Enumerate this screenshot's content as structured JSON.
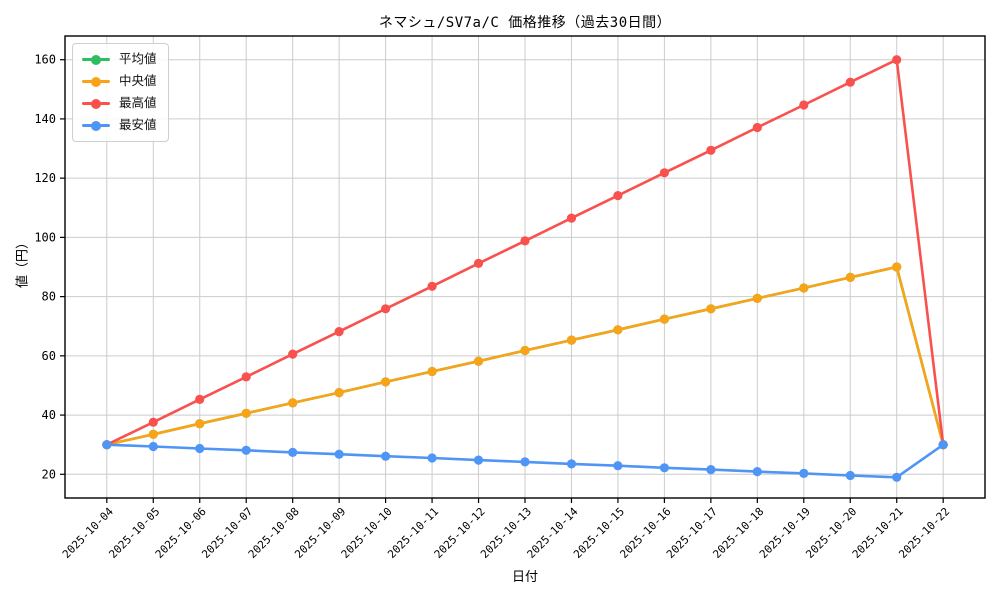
{
  "chart_data": {
    "type": "line",
    "title": "ネマシュ/SV7a/C 価格推移（過去30日間）",
    "xlabel": "日付",
    "ylabel": "値（円）",
    "x": [
      "2025-10-04",
      "2025-10-05",
      "2025-10-06",
      "2025-10-07",
      "2025-10-08",
      "2025-10-09",
      "2025-10-10",
      "2025-10-11",
      "2025-10-12",
      "2025-10-13",
      "2025-10-14",
      "2025-10-15",
      "2025-10-16",
      "2025-10-17",
      "2025-10-18",
      "2025-10-19",
      "2025-10-20",
      "2025-10-21",
      "2025-10-22"
    ],
    "yticks": [
      20,
      40,
      60,
      80,
      100,
      120,
      140,
      160
    ],
    "ylim": [
      12,
      168
    ],
    "x_pad": 0.9,
    "grid": true,
    "grid_color": "#cccccc",
    "spine_color": "#000000",
    "legend_position": "upper-left",
    "series": [
      {
        "key": "mean",
        "name": "平均値",
        "color": "#2dbe60",
        "visually_hidden_behind_median": true,
        "values": [
          30.0,
          33.5,
          37.1,
          40.6,
          44.1,
          47.6,
          51.2,
          54.7,
          58.2,
          61.8,
          65.3,
          68.8,
          72.4,
          75.9,
          79.4,
          82.9,
          86.5,
          90.0,
          30.0
        ]
      },
      {
        "key": "median",
        "name": "中央値",
        "color": "#f9a318",
        "values": [
          30.0,
          33.5,
          37.1,
          40.6,
          44.1,
          47.6,
          51.2,
          54.7,
          58.2,
          61.8,
          65.3,
          68.8,
          72.4,
          75.9,
          79.4,
          82.9,
          86.5,
          90.0,
          30.0
        ]
      },
      {
        "key": "max",
        "name": "最高値",
        "color": "#f8514e",
        "values": [
          30.0,
          37.6,
          45.3,
          52.9,
          60.6,
          68.2,
          75.9,
          83.5,
          91.2,
          98.8,
          106.5,
          114.1,
          121.8,
          129.4,
          137.1,
          144.7,
          152.4,
          160.0,
          30.0
        ]
      },
      {
        "key": "min",
        "name": "最安値",
        "color": "#4e95f5",
        "values": [
          30.0,
          29.4,
          28.7,
          28.1,
          27.4,
          26.8,
          26.1,
          25.5,
          24.8,
          24.2,
          23.5,
          22.9,
          22.2,
          21.6,
          20.9,
          20.3,
          19.6,
          19.0,
          30.0
        ]
      }
    ]
  }
}
